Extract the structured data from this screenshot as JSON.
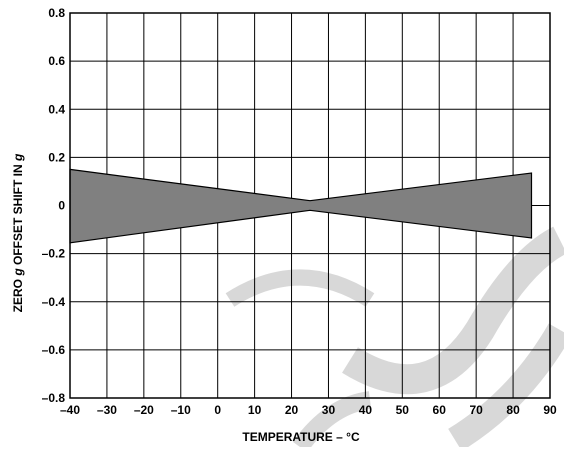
{
  "chart_data": {
    "type": "area",
    "title": "",
    "xlabel": "TEMPERATURE – °C",
    "ylabel_parts": [
      "ZERO ",
      "g",
      " OFFSET SHIFT IN ",
      "g"
    ],
    "xlim": [
      -40,
      90
    ],
    "ylim": [
      -0.8,
      0.8
    ],
    "x_ticks": [
      -40,
      -30,
      -20,
      -10,
      0,
      10,
      20,
      30,
      40,
      50,
      60,
      70,
      80,
      90
    ],
    "x_tick_labels": [
      "–40",
      "–30",
      "–20",
      "–10",
      "0",
      "10",
      "20",
      "30",
      "40",
      "50",
      "60",
      "70",
      "80",
      "90"
    ],
    "y_ticks": [
      0.8,
      0.6,
      0.4,
      0.2,
      0,
      -0.2,
      -0.4,
      -0.6,
      -0.8
    ],
    "y_tick_labels": [
      "0.8",
      "0.6",
      "0.4",
      "0.2",
      "0",
      "–0.2",
      "–0.4",
      "–0.6",
      "–0.8"
    ],
    "grid": true,
    "band": {
      "upper": [
        {
          "x": -40,
          "y": 0.15
        },
        {
          "x": 25,
          "y": 0.02
        },
        {
          "x": 85,
          "y": 0.135
        }
      ],
      "lower": [
        {
          "x": -40,
          "y": -0.155
        },
        {
          "x": 25,
          "y": -0.02
        },
        {
          "x": 85,
          "y": -0.135
        }
      ],
      "fill_color": "#808080",
      "stroke_color": "#000000"
    }
  },
  "watermark": {
    "color": "#c8c8c8"
  }
}
